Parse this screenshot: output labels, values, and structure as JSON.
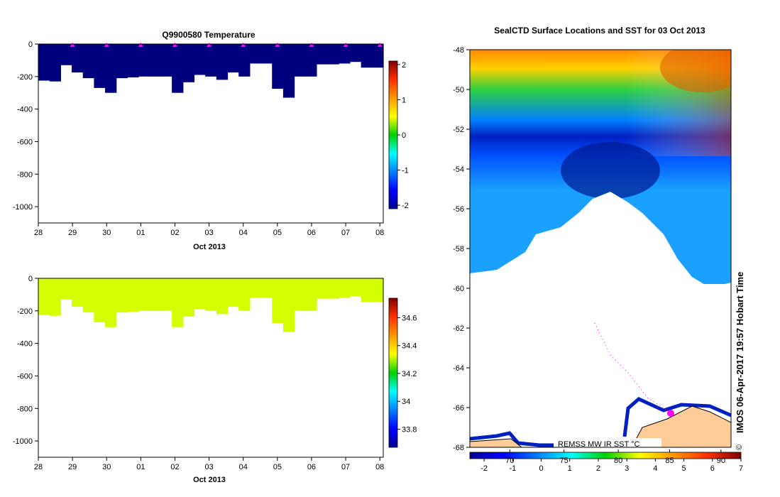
{
  "chart_data": [
    {
      "type": "heatmap",
      "title": "Q9900580  Temperature",
      "xlabel": "Oct 2013",
      "ylabel": "",
      "x_ticks": [
        "28",
        "29",
        "30",
        "01",
        "02",
        "03",
        "04",
        "05",
        "06",
        "07",
        "08"
      ],
      "y_ticks": [
        "0",
        "-200",
        "-400",
        "-600",
        "-800",
        "-1000"
      ],
      "ylim": [
        -1100,
        0
      ],
      "xlim": [
        0,
        10.1
      ],
      "fill_color": "#00007f",
      "profile_max_depth": [
        225,
        230,
        130,
        175,
        210,
        270,
        300,
        210,
        205,
        200,
        200,
        200,
        300,
        235,
        190,
        200,
        220,
        175,
        200,
        120,
        120,
        275,
        330,
        200,
        200,
        125,
        125,
        120,
        110,
        145,
        145
      ],
      "station_markers": [
        1,
        2,
        3,
        4,
        5,
        6,
        7,
        8,
        9,
        10
      ],
      "marker_color": "#ff00ff",
      "colorbar": {
        "range": [
          -2.1,
          2.1
        ],
        "ticks": [
          "2",
          "1",
          "0",
          "-1",
          "-2"
        ],
        "values": [
          2,
          1,
          0,
          -1,
          -2
        ]
      }
    },
    {
      "type": "heatmap",
      "title": "",
      "xlabel": "Oct 2013",
      "ylabel": "",
      "x_ticks": [
        "28",
        "29",
        "30",
        "01",
        "02",
        "03",
        "04",
        "05",
        "06",
        "07",
        "08"
      ],
      "y_ticks": [
        "0",
        "-200",
        "-400",
        "-600",
        "-800",
        "-1000"
      ],
      "ylim": [
        -1100,
        0
      ],
      "xlim": [
        0,
        10.1
      ],
      "fill_color": "#d4ff00",
      "profile_max_depth": [
        225,
        230,
        130,
        175,
        210,
        270,
        300,
        210,
        205,
        200,
        200,
        200,
        300,
        235,
        190,
        200,
        220,
        175,
        200,
        120,
        120,
        275,
        330,
        200,
        200,
        125,
        125,
        120,
        110,
        145,
        145
      ],
      "colorbar": {
        "range": [
          33.67,
          34.74
        ],
        "ticks": [
          "34.6",
          "34.4",
          "34.2",
          "34",
          "33.8"
        ],
        "values": [
          34.6,
          34.4,
          34.2,
          34,
          33.8
        ]
      }
    },
    {
      "type": "heatmap",
      "title": "SealCTD Surface Locations and SST for 03 Oct 2013",
      "xlabel": "",
      "ylabel": "",
      "y_ticks": [
        "-48",
        "-50",
        "-52",
        "-54",
        "-56",
        "-58",
        "-60",
        "-62",
        "-64",
        "-66",
        "-68"
      ],
      "ylim": [
        -68,
        -48
      ],
      "legend_text": "REMSS MW IR SST °C",
      "colorbar": {
        "range": [
          -2.5,
          7
        ],
        "ticks": [
          "-2",
          "-1",
          "0",
          "1",
          "2",
          "3",
          "4",
          "5",
          "6",
          "7"
        ],
        "values": [
          -2,
          -1,
          0,
          1,
          2,
          3,
          4,
          5,
          6,
          7
        ],
        "secondary_ticks": [
          "70",
          "75",
          "80",
          "85",
          "90"
        ],
        "secondary_values": [
          -1.1,
          0.8,
          2.7,
          4.5,
          6.3
        ]
      },
      "land_color": "#ffcc99",
      "track_color": "#ff00ff"
    }
  ],
  "credit": "IMOS 06-Apr-2017 19:57 Hobart Time",
  "copyright_mark": "©"
}
